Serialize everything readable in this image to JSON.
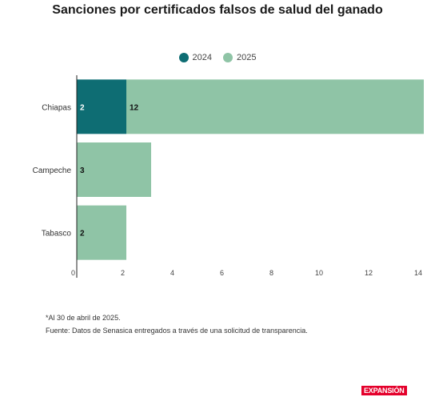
{
  "chart_data": {
    "type": "bar",
    "orientation": "horizontal",
    "stacked": true,
    "title": "Sanciones por certificados falsos de salud del ganado",
    "categories": [
      "Chiapas",
      "Campeche",
      "Tabasco"
    ],
    "series": [
      {
        "name": "2024",
        "values": [
          2,
          0,
          0
        ],
        "color": "#0e6d73"
      },
      {
        "name": "2025",
        "values": [
          12,
          3,
          2
        ],
        "color": "#8fc4a6"
      }
    ],
    "data_labels": [
      [
        {
          "series": 0,
          "text": "2"
        },
        {
          "series": 1,
          "text": "12"
        }
      ],
      [
        {
          "series": 1,
          "text": "3"
        }
      ],
      [
        {
          "series": 1,
          "text": "2"
        }
      ]
    ],
    "xlim": [
      0,
      14
    ],
    "xticks": [
      "0",
      "2",
      "4",
      "6",
      "8",
      "10",
      "12",
      "14"
    ],
    "legend_position": "top-center"
  },
  "notes": {
    "line1": "*Al 30 de abril de 2025.",
    "line2": "Fuente: Datos de Senasica entregados a través de una solicitud de transparencia."
  },
  "brand": {
    "logo_text": "EXPANSIÓN"
  }
}
